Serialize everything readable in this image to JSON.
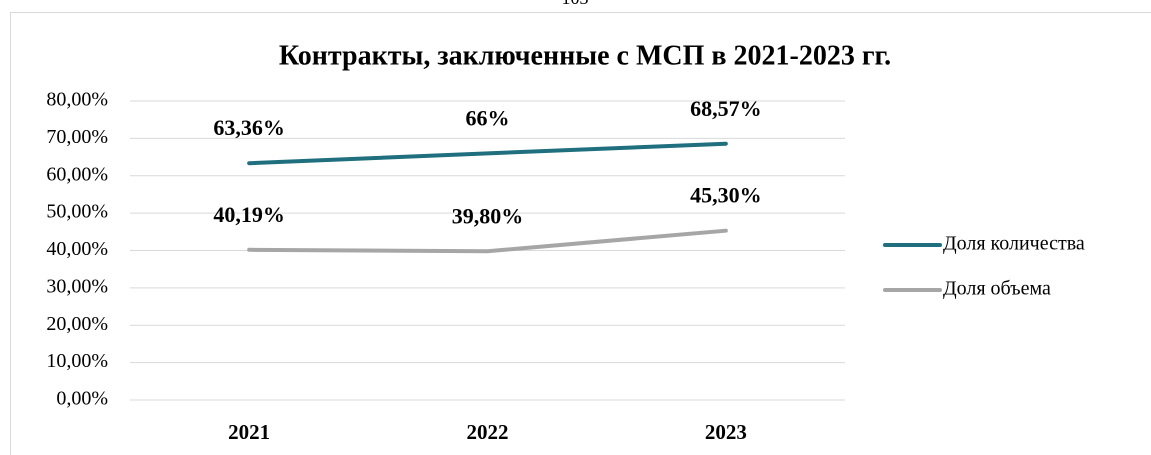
{
  "page_number": "103",
  "chart_data": {
    "type": "line",
    "title": "Контракты, заключенные с МСП в 2021-2023 гг.",
    "categories": [
      "2021",
      "2022",
      "2023"
    ],
    "series": [
      {
        "name": "Доля количества",
        "color": "#1f6f7f",
        "values": [
          63.36,
          66,
          68.57
        ],
        "value_labels": [
          "63,36%",
          "66%",
          "68,57%"
        ]
      },
      {
        "name": "Доля объема",
        "color": "#a6a6a6",
        "values": [
          40.19,
          39.8,
          45.3
        ],
        "value_labels": [
          "40,19%",
          "39,80%",
          "45,30%"
        ]
      }
    ],
    "ylim": [
      0,
      80
    ],
    "yticks": [
      {
        "value": 0,
        "label": "0,00%"
      },
      {
        "value": 10,
        "label": "10,00%"
      },
      {
        "value": 20,
        "label": "20,00%"
      },
      {
        "value": 30,
        "label": "30,00%"
      },
      {
        "value": 40,
        "label": "40,00%"
      },
      {
        "value": 50,
        "label": "50,00%"
      },
      {
        "value": 60,
        "label": "60,00%"
      },
      {
        "value": 70,
        "label": "70,00%"
      },
      {
        "value": 80,
        "label": "80,00%"
      }
    ],
    "grid": true,
    "legend": "right"
  }
}
